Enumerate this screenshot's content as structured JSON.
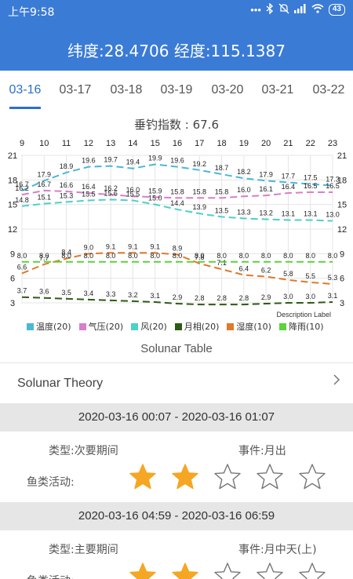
{
  "status_bar": {
    "time": "上午9:58",
    "icons": [
      "more-dots-icon",
      "bluetooth-icon",
      "mute-icon",
      "signal-icon",
      "wifi-icon"
    ],
    "battery": "43"
  },
  "header": {
    "coordinates": "纬度:28.4706 经度:115.1387",
    "color": "#3a7bd5"
  },
  "tabs": {
    "items": [
      "03-16",
      "03-17",
      "03-18",
      "03-19",
      "03-20",
      "03-21",
      "03-22"
    ],
    "active_index": 0,
    "active_color": "#2e6fc6"
  },
  "chart_title": "垂钓指数 : 67.6",
  "chart_data": {
    "type": "line",
    "x": [
      9,
      10,
      11,
      12,
      13,
      14,
      15,
      16,
      17,
      18,
      19,
      20,
      21,
      22,
      23
    ],
    "left_axis_ticks": [
      21,
      18,
      15,
      12,
      9,
      6,
      3
    ],
    "right_axis_ticks": [
      21,
      18,
      15,
      12,
      9,
      6,
      3
    ],
    "ylim": [
      3,
      21
    ],
    "grid": true,
    "legend_position": "bottom",
    "series": [
      {
        "name": "温度(20)",
        "color": "#49b8d6",
        "values": [
          16.7,
          17.9,
          18.9,
          19.6,
          19.7,
          19.4,
          19.9,
          19.6,
          19.2,
          18.7,
          18.2,
          17.9,
          17.7,
          17.5,
          17.3
        ],
        "labels": [
          "16.7",
          "17.9",
          "18.9",
          "19.6",
          "19.7",
          "19.4",
          "19.9",
          "19.6",
          "19.2",
          "18.7",
          "18.2",
          "17.9",
          "17.7",
          "17.5",
          "17.3"
        ]
      },
      {
        "name": "气压(20)",
        "color": "#d87fc9",
        "values": [
          16.2,
          16.7,
          16.6,
          16.4,
          16.2,
          16.0,
          15.9,
          15.8,
          15.8,
          15.8,
          16.0,
          16.1,
          16.4,
          16.5,
          16.5
        ],
        "labels": [
          "16.2",
          "16.7",
          "16.6",
          "16.4",
          "16.2",
          "16.0",
          "15.9",
          "15.8",
          "15.8",
          "15.8",
          "16.0",
          "16.1",
          "16.4",
          "16.5",
          "16.5"
        ]
      },
      {
        "name": "风(20)",
        "color": "#4cd1c8",
        "values": [
          14.8,
          15.1,
          15.3,
          15.5,
          15.6,
          15.5,
          15.0,
          14.4,
          13.9,
          13.5,
          13.3,
          13.2,
          13.1,
          13.1,
          13.0
        ],
        "labels": [
          "14.8",
          "15.1",
          "15.3",
          "15.5",
          "15.6",
          "15.5",
          "15.0",
          "14.4",
          "13.9",
          "13.5",
          "13.3",
          "13.2",
          "13.1",
          "13.1",
          "13.0"
        ]
      },
      {
        "name": "月相(20)",
        "color": "#2f5a14",
        "values": [
          3.7,
          3.6,
          3.5,
          3.4,
          3.3,
          3.2,
          3.1,
          2.9,
          2.8,
          2.8,
          2.8,
          2.9,
          3.0,
          3.0,
          3.1
        ],
        "labels": [
          "3.7",
          "3.6",
          "3.5",
          "3.4",
          "3.3",
          "3.2",
          "3.1",
          "2.9",
          "2.8",
          "2.8",
          "2.8",
          "2.9",
          "3.0",
          "3.0",
          "3.1"
        ]
      },
      {
        "name": "湿度(10)",
        "color": "#e07a2a",
        "values": [
          6.6,
          7.7,
          8.4,
          9.0,
          9.1,
          9.1,
          9.1,
          8.9,
          7.8,
          7.1,
          6.4,
          6.2,
          5.8,
          5.5,
          5.3
        ],
        "labels": [
          "6.6",
          "7.7",
          "8.4",
          "9.0",
          "9.1",
          "9.1",
          "9.1",
          "8.9",
          "7.8",
          "7.1",
          "6.4",
          "6.2",
          "5.8",
          "5.5",
          "5.3"
        ]
      },
      {
        "name": "降雨(10)",
        "color": "#5ad33c",
        "values": [
          8.0,
          8.0,
          8.0,
          8.0,
          8.0,
          8.0,
          8.0,
          8.0,
          8.0,
          8.0,
          8.0,
          8.0,
          8.0,
          8.0,
          8.0
        ],
        "labels": [
          "8.0",
          "8.0",
          "8.0",
          "8.0",
          "8.0",
          "8.0",
          "8.0",
          "8.0",
          "8.0",
          "8.0",
          "8.0",
          "8.0",
          "8.0",
          "8.0",
          "8.0"
        ]
      }
    ],
    "description_label": "Description Label"
  },
  "solunar": {
    "table_title": "Solunar Table",
    "theory_label": "Solunar Theory",
    "periods": [
      {
        "time_range": "2020-03-16 00:07 - 2020-03-16 01:07",
        "type": "类型:次要期间",
        "event": "事件:月出",
        "activity_label": "鱼类活动:",
        "stars": 2,
        "max_stars": 5
      },
      {
        "time_range": "2020-03-16 04:59 - 2020-03-16 06:59",
        "type": "类型:主要期间",
        "event": "事件:月中天(上)",
        "activity_label": "鱼类活动:",
        "stars": 2,
        "max_stars": 5
      }
    ],
    "star_color": "#f5a623"
  }
}
